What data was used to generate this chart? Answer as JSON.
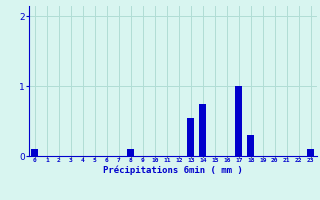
{
  "values": [
    0.1,
    0,
    0,
    0,
    0,
    0,
    0,
    0,
    0.1,
    0,
    0,
    0,
    0,
    0.55,
    0.75,
    0,
    0,
    1.0,
    0.3,
    0,
    0,
    0,
    0,
    0.1
  ],
  "num_bars": 24,
  "xlabel": "Précipitations 6min ( mm )",
  "bar_color": "#0000cc",
  "bg_color": "#d8f5f0",
  "grid_color": "#b0ddd5",
  "tick_color": "#0000cc",
  "label_color": "#0000cc",
  "ylim": [
    0,
    2.15
  ],
  "yticks": [
    0,
    1,
    2
  ],
  "xlim": [
    -0.5,
    23.5
  ],
  "bar_width": 0.6
}
